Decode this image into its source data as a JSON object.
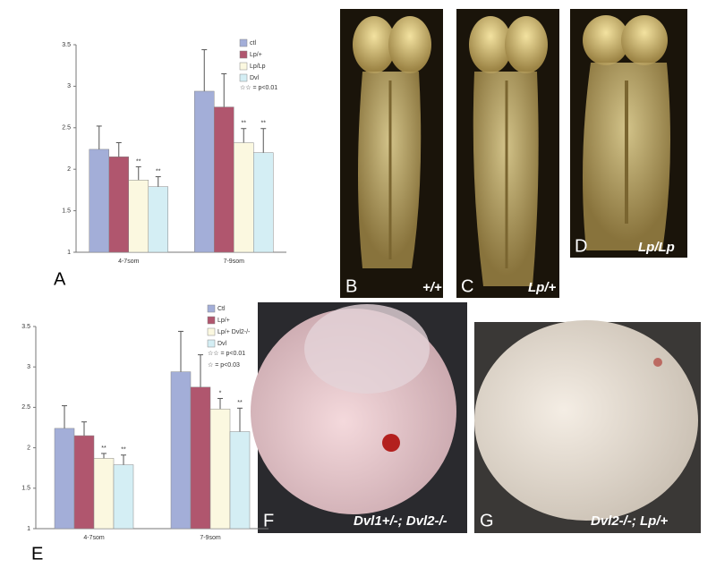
{
  "chart_data": [
    {
      "type": "bar",
      "categories": [
        "4-7som",
        "7-9som"
      ],
      "ylim": [
        1,
        3.5
      ],
      "yticks": [
        1,
        1.5,
        2,
        2.5,
        3,
        3.5
      ],
      "series": [
        {
          "name": "ctl",
          "color": "#a3aed8",
          "values": [
            2.24,
            2.94
          ],
          "errors": [
            0.28,
            0.5
          ]
        },
        {
          "name": "Lp/+",
          "color": "#b0566e",
          "values": [
            2.15,
            2.75
          ],
          "errors": [
            0.17,
            0.4
          ]
        },
        {
          "name": "Lp/Lp",
          "color": "#fbf8e0",
          "values": [
            1.87,
            2.32
          ],
          "errors": [
            0.16,
            0.17
          ],
          "significance": [
            "**",
            "**"
          ]
        },
        {
          "name": "Dvl",
          "color": "#d4eef4",
          "values": [
            1.79,
            2.2
          ],
          "errors": [
            0.12,
            0.29
          ],
          "significance": [
            "**",
            "**"
          ]
        }
      ],
      "legend_notes": [
        "☆☆ = p<0.01"
      ]
    },
    {
      "type": "bar",
      "categories": [
        "4-7som",
        "7-9som"
      ],
      "ylim": [
        1,
        3.5
      ],
      "yticks": [
        1,
        1.5,
        2,
        2.5,
        3,
        3.5
      ],
      "series": [
        {
          "name": "Ctl",
          "color": "#a3aed8",
          "values": [
            2.24,
            2.94
          ],
          "errors": [
            0.28,
            0.5
          ]
        },
        {
          "name": "Lp/+",
          "color": "#b0566e",
          "values": [
            2.15,
            2.75
          ],
          "errors": [
            0.17,
            0.4
          ]
        },
        {
          "name": "Lp/+ Dvl2-/-",
          "color": "#fbf8e0",
          "values": [
            1.87,
            2.48
          ],
          "errors": [
            0.06,
            0.13
          ],
          "significance": [
            "**",
            "*"
          ]
        },
        {
          "name": "Dvl",
          "color": "#d4eef4",
          "values": [
            1.79,
            2.2
          ],
          "errors": [
            0.12,
            0.29
          ],
          "significance": [
            "**",
            "**"
          ]
        }
      ],
      "legend_notes": [
        "☆☆ = p<0.01",
        "☆ = p<0.03"
      ]
    }
  ],
  "panels": {
    "A": "A",
    "B": "B",
    "C": "C",
    "D": "D",
    "E": "E",
    "F": "F",
    "G": "G"
  },
  "captions": {
    "B": "+/+",
    "C": "Lp/+",
    "D": "Lp/Lp",
    "F": "Dvl1+/-; Dvl2-/-",
    "G": "Dvl2-/-; Lp/+"
  }
}
